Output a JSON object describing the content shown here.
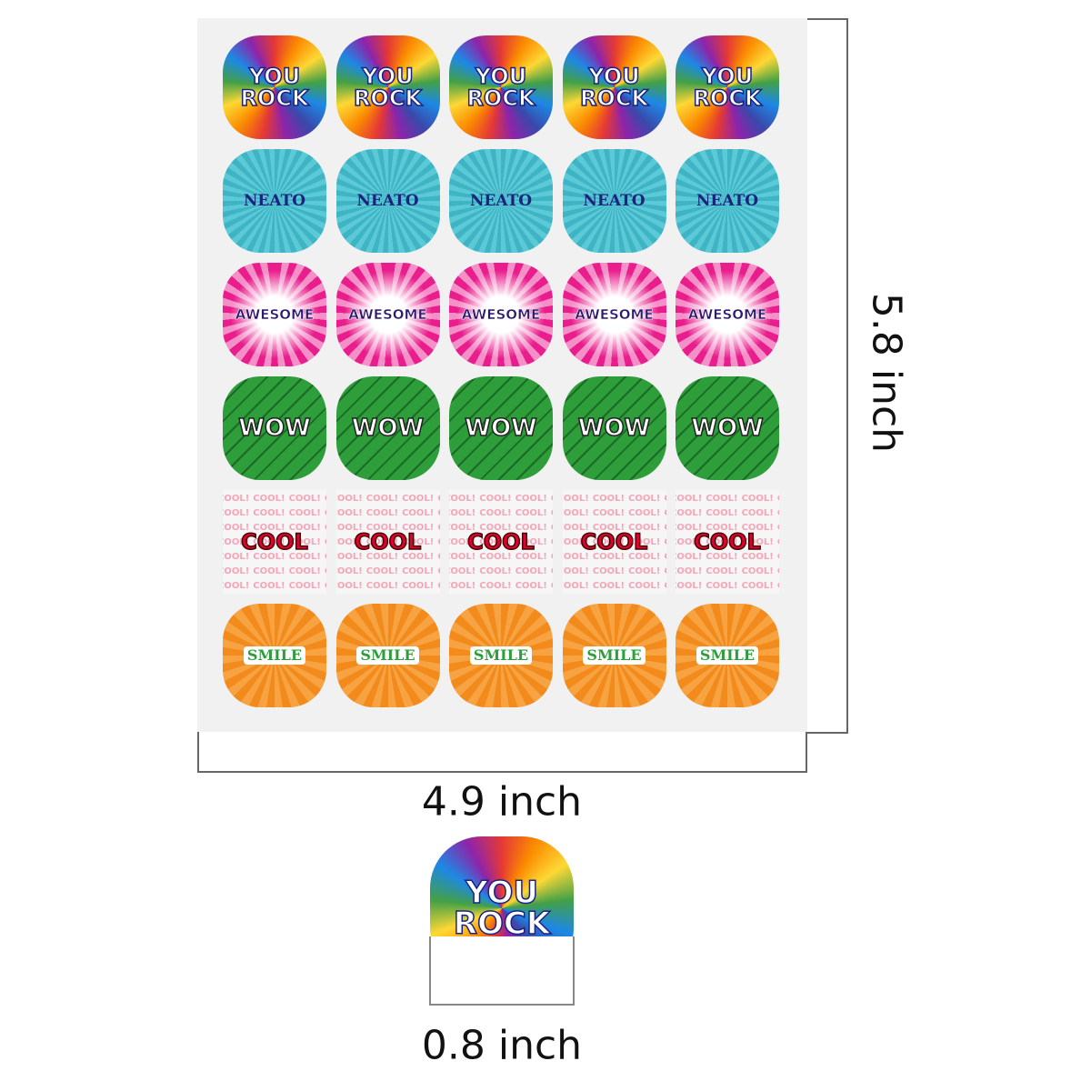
{
  "sheet": {
    "rows": [
      {
        "label_lines": [
          "YOU",
          "ROCK"
        ],
        "style": "rainbow"
      },
      {
        "label_lines": [
          "NEATO"
        ],
        "style": "teal"
      },
      {
        "label_lines": [
          "AWESOME"
        ],
        "style": "pink"
      },
      {
        "label_lines": [
          "WOW"
        ],
        "style": "green"
      },
      {
        "label_lines": [
          "COOL"
        ],
        "style": "cool",
        "pattern_text": "COOL!"
      },
      {
        "label_lines": [
          "SMILE"
        ],
        "style": "orange"
      }
    ],
    "columns": 5
  },
  "dimensions": {
    "height": "5.8 inch",
    "width": "4.9 inch",
    "sticker": "0.8 inch"
  }
}
